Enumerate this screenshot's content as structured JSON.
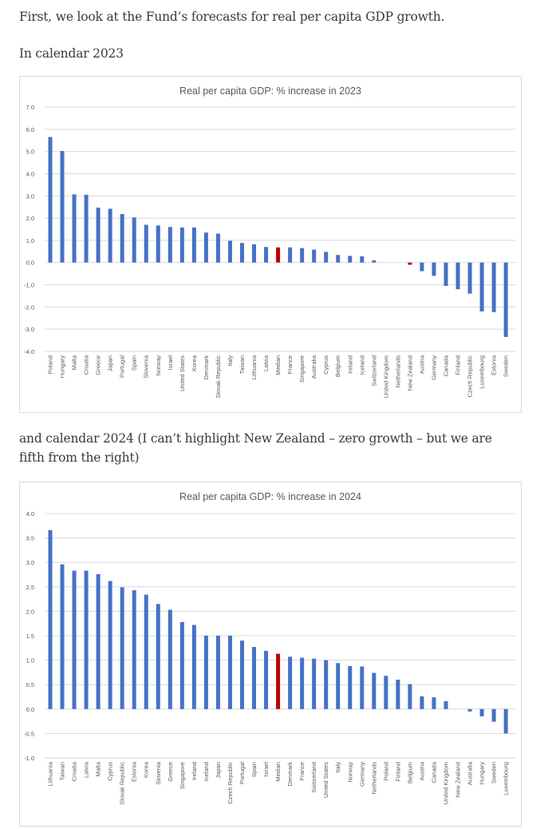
{
  "text": {
    "intro": "First, we look at the Fund’s forecasts for real per capita GDP growth.",
    "heading_2023": "In calendar 2023",
    "heading_2024": "and calendar 2024 (I can’t highlight New Zealand – zero growth – but we are fifth from the right)"
  },
  "colors": {
    "bar": "#4472c4",
    "highlight": "#c00000"
  },
  "chart_data": [
    {
      "type": "bar",
      "title": "Real per capita GDP: % increase in 2023",
      "xlabel": "",
      "ylabel": "",
      "ylim": [
        -4.0,
        7.0
      ],
      "yticks": [
        "7.0",
        "6.0",
        "5.0",
        "4.0",
        "3.0",
        "2.0",
        "1.0",
        "0.0",
        "-1.0",
        "-2.0",
        "-3.0",
        "-4.0"
      ],
      "ytick_values": [
        7,
        6,
        5,
        4,
        3,
        2,
        1,
        0,
        -1,
        -2,
        -3,
        -4
      ],
      "grid": true,
      "legend": "none",
      "highlight": [
        "Median",
        "New Zealand"
      ],
      "categories": [
        "Poland",
        "Hungary",
        "Malta",
        "Croatia",
        "Greece",
        "Japan",
        "Portugal",
        "Spain",
        "Slovenia",
        "Norway",
        "Israel",
        "United States",
        "Korea",
        "Denmark",
        "Slovak Republic",
        "Italy",
        "Taiwan",
        "Lithuania",
        "Latvia",
        "Median",
        "France",
        "Singapore",
        "Australia",
        "Cyprus",
        "Belgium",
        "Ireland",
        "Iceland",
        "Switzerland",
        "United Kingdom",
        "Netherlands",
        "New Zealand",
        "Austria",
        "Germany",
        "Canada",
        "Finland",
        "Czech Republic",
        "Luxembourg",
        "Estonia",
        "Sweden"
      ],
      "values": [
        5.65,
        5.02,
        3.07,
        3.05,
        2.47,
        2.42,
        2.18,
        2.03,
        1.7,
        1.67,
        1.6,
        1.58,
        1.58,
        1.35,
        1.3,
        0.98,
        0.88,
        0.82,
        0.7,
        0.68,
        0.68,
        0.65,
        0.58,
        0.48,
        0.34,
        0.3,
        0.28,
        0.1,
        0.0,
        0.0,
        -0.1,
        -0.39,
        -0.6,
        -1.05,
        -1.2,
        -1.4,
        -2.2,
        -2.23,
        -3.35
      ]
    },
    {
      "type": "bar",
      "title": "Real per capita GDP: % increase in 2024",
      "xlabel": "",
      "ylabel": "",
      "ylim": [
        -1.0,
        4.0
      ],
      "yticks": [
        "4.0",
        "3.5",
        "3.0",
        "2.5",
        "2.0",
        "1.5",
        "1.0",
        "0.5",
        "0.0",
        "-0.5",
        "-1.0"
      ],
      "ytick_values": [
        4,
        3.5,
        3,
        2.5,
        2,
        1.5,
        1,
        0.5,
        0,
        -0.5,
        -1
      ],
      "grid": true,
      "legend": "none",
      "highlight": [
        "Median"
      ],
      "categories": [
        "Lithuania",
        "Taiwan",
        "Croatia",
        "Latvia",
        "Malta",
        "Cyprus",
        "Slovak Republic",
        "Estonia",
        "Korea",
        "Slovenia",
        "Greece",
        "Singapore",
        "Ireland",
        "Iceland",
        "Japan",
        "Czech Republic",
        "Portugal",
        "Spain",
        "Israel",
        "Median",
        "Denmark",
        "France",
        "Switzerland",
        "United States",
        "Italy",
        "Norway",
        "Germany",
        "Netherlands",
        "Poland",
        "Finland",
        "Belgium",
        "Austria",
        "Canada",
        "United Kingdom",
        "New Zealand",
        "Australia",
        "Hungary",
        "Sweden",
        "Luxembourg"
      ],
      "values": [
        3.66,
        2.96,
        2.83,
        2.83,
        2.76,
        2.62,
        2.49,
        2.43,
        2.34,
        2.15,
        2.03,
        1.78,
        1.72,
        1.5,
        1.5,
        1.5,
        1.4,
        1.27,
        1.19,
        1.13,
        1.07,
        1.05,
        1.03,
        1.0,
        0.94,
        0.88,
        0.87,
        0.74,
        0.68,
        0.6,
        0.51,
        0.26,
        0.24,
        0.16,
        0.0,
        -0.05,
        -0.15,
        -0.26,
        -0.5
      ]
    }
  ]
}
